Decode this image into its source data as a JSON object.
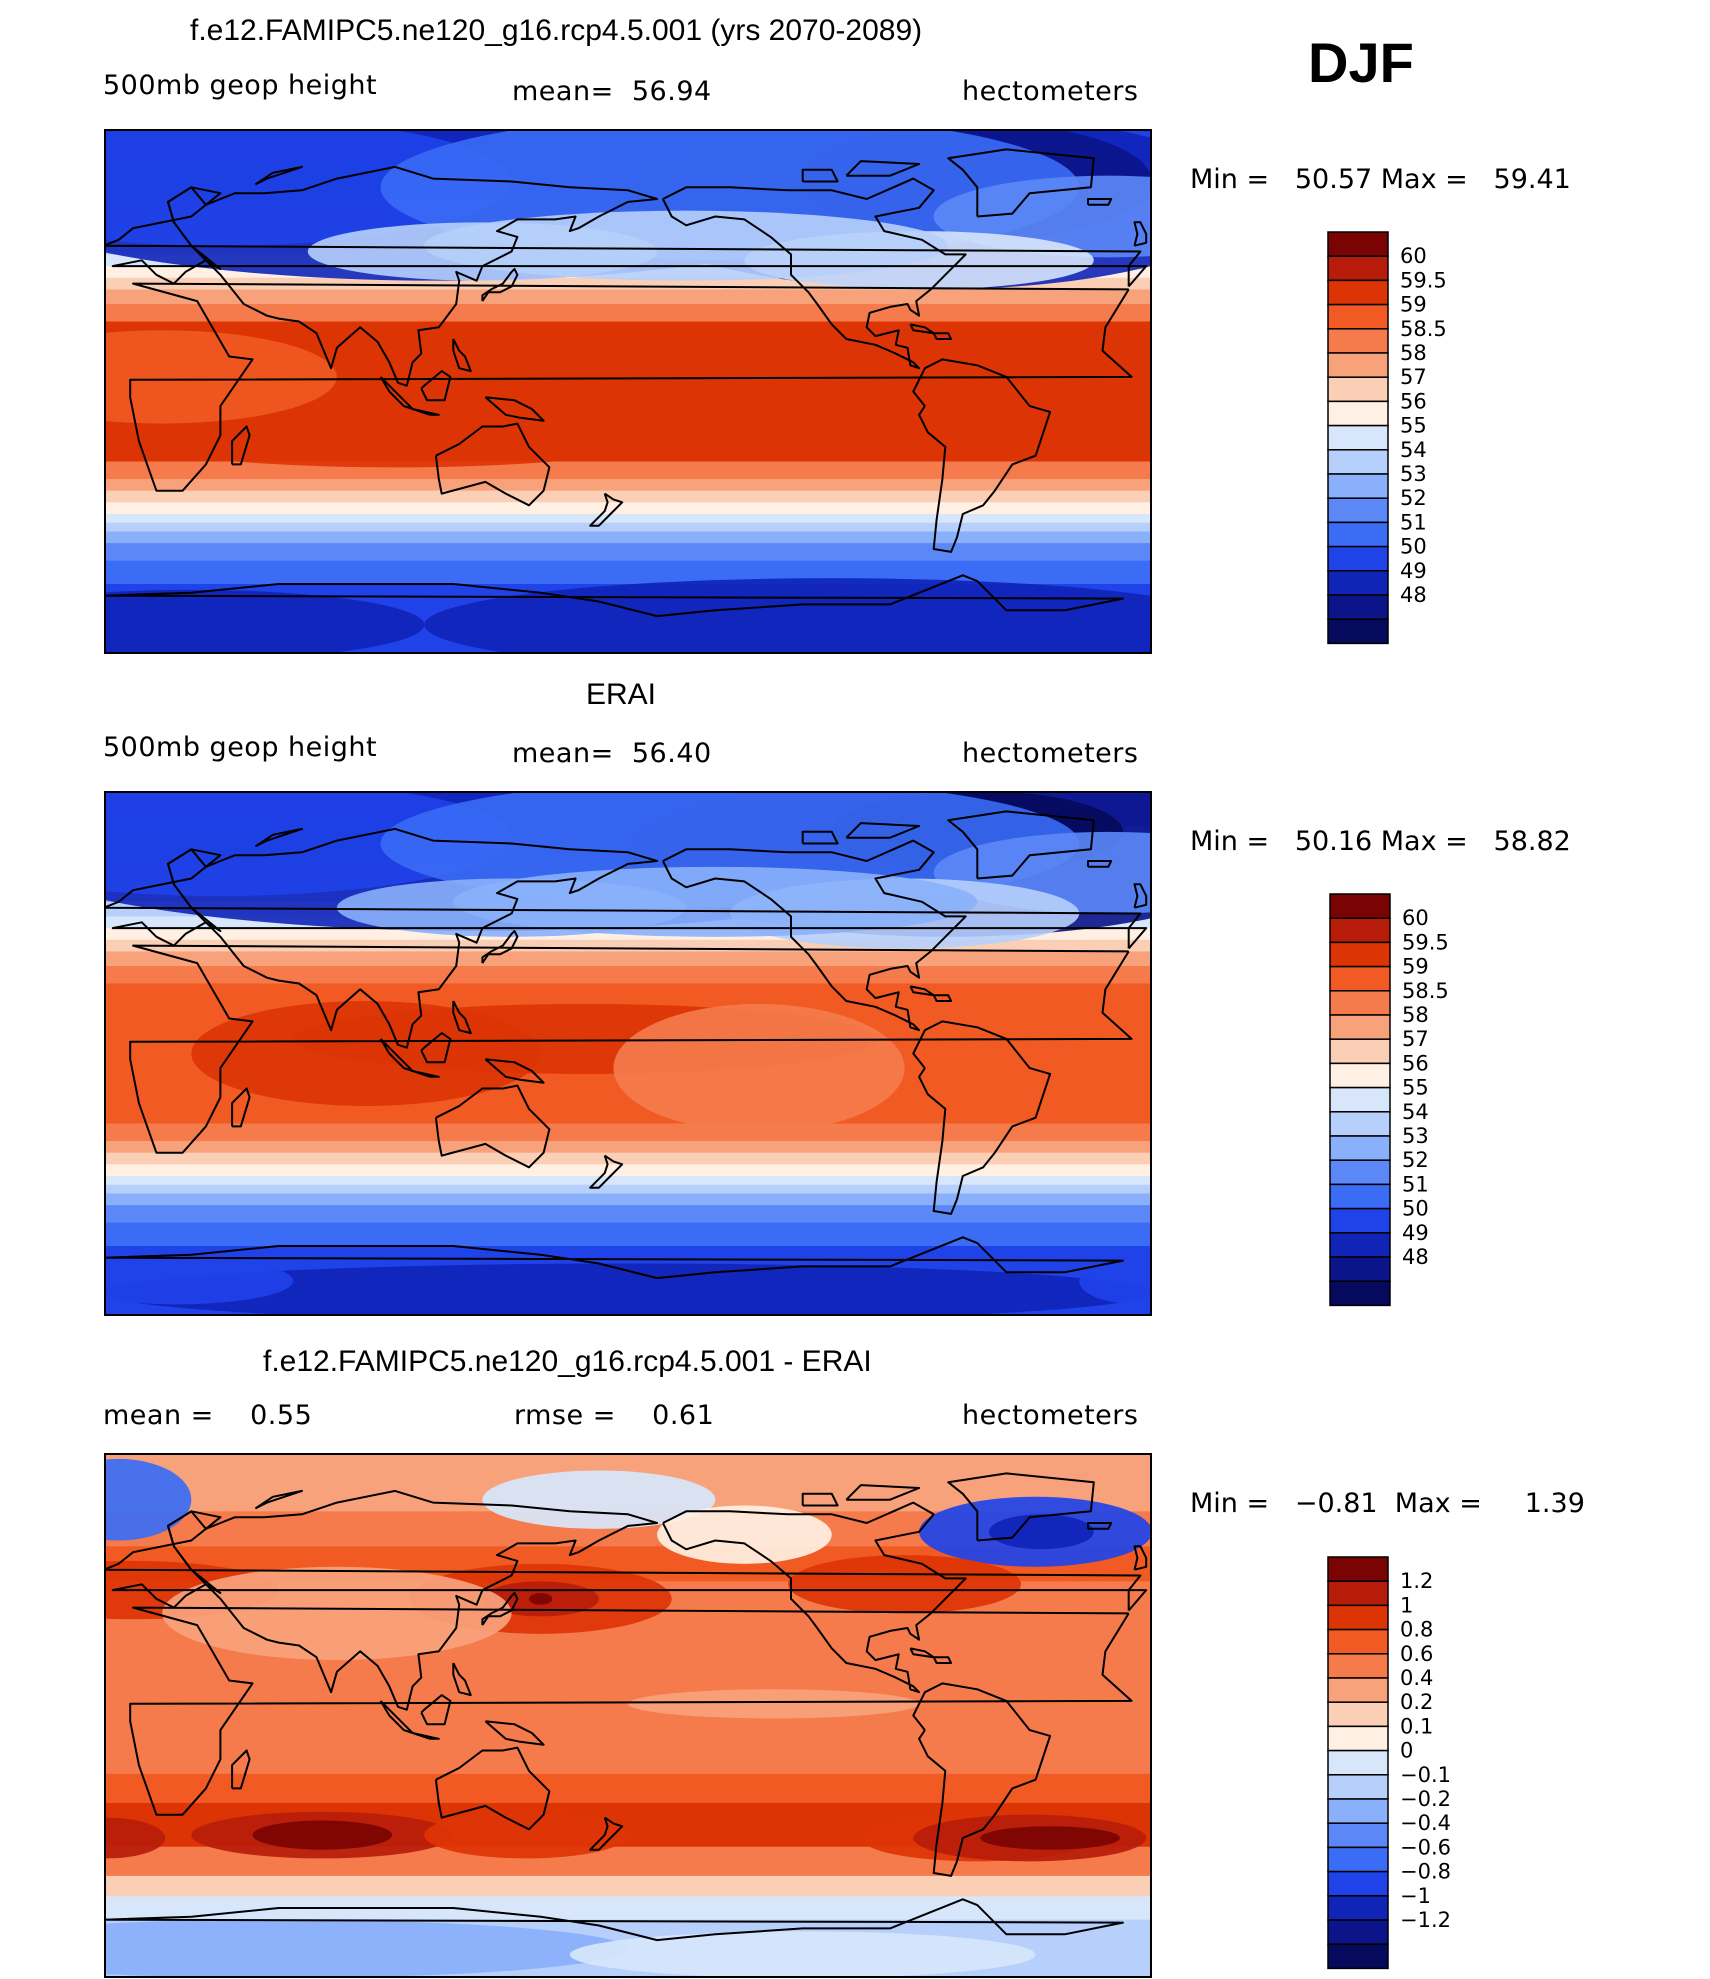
{
  "figure": {
    "season_label": "DJF"
  },
  "colors": {
    "abs_levels": [
      "#7a0403",
      "#b71c0a",
      "#dd3406",
      "#f15a22",
      "#f57b4c",
      "#f8a27c",
      "#fbcfb6",
      "#fff0e3",
      "#d7e6fb",
      "#b6cffb",
      "#8ab0fb",
      "#5c88f7",
      "#3a6cf5",
      "#1f43e9",
      "#1024b8",
      "#0b1488",
      "#060a5c"
    ],
    "diff_levels": [
      "#7a0403",
      "#b71c0a",
      "#dd3406",
      "#f15a22",
      "#f57b4c",
      "#f8a27c",
      "#fbcfb6",
      "#fff0e3",
      "#d7e6fb",
      "#b6cffb",
      "#8ab0fb",
      "#5c88f7",
      "#3a6cf5",
      "#1f43e9",
      "#1024b8",
      "#0b1488",
      "#060a5c"
    ],
    "coast": "#000000"
  },
  "chart_data": [
    {
      "type": "heatmap",
      "title": "f.e12.FAMIPC5.ne120_g16.rcp4.5.001 (yrs 2070-2089)",
      "variable": "500mb geop height",
      "stat_label": "mean=",
      "stat_value": "56.94",
      "units": "hectometers",
      "min_label": "Min =",
      "min_value": "50.57",
      "max_label": "Max =",
      "max_value": "59.41",
      "colorbar_ticks": [
        "60",
        "59.5",
        "59",
        "58.5",
        "58",
        "57",
        "56",
        "55",
        "54",
        "53",
        "52",
        "51",
        "50",
        "49",
        "48"
      ],
      "field": "model",
      "x_range_lon": [
        0,
        360
      ],
      "y_range_lat": [
        -90,
        90
      ]
    },
    {
      "type": "heatmap",
      "title": "ERAI",
      "variable": "500mb geop height",
      "stat_label": "mean=",
      "stat_value": "56.40",
      "units": "hectometers",
      "min_label": "Min =",
      "min_value": "50.16",
      "max_label": "Max =",
      "max_value": "58.82",
      "colorbar_ticks": [
        "60",
        "59.5",
        "59",
        "58.5",
        "58",
        "57",
        "56",
        "55",
        "54",
        "53",
        "52",
        "51",
        "50",
        "49",
        "48"
      ],
      "field": "obs",
      "x_range_lon": [
        0,
        360
      ],
      "y_range_lat": [
        -90,
        90
      ]
    },
    {
      "type": "heatmap",
      "title": "f.e12.FAMIPC5.ne120_g16.rcp4.5.001 - ERAI",
      "stat1_label": "mean =",
      "stat1_value": "0.55",
      "stat2_label": "rmse =",
      "stat2_value": "0.61",
      "units": "hectometers",
      "min_label": "Min =",
      "min_value": "−0.81",
      "max_label": "Max =",
      "max_value": "1.39",
      "colorbar_ticks": [
        "1.2",
        "1",
        "0.8",
        "0.6",
        "0.4",
        "0.2",
        "0.1",
        "0",
        "−0.1",
        "−0.2",
        "−0.4",
        "−0.6",
        "−0.8",
        "−1",
        "−1.2"
      ],
      "field": "diff",
      "x_range_lon": [
        0,
        360
      ],
      "y_range_lat": [
        -90,
        90
      ]
    }
  ]
}
